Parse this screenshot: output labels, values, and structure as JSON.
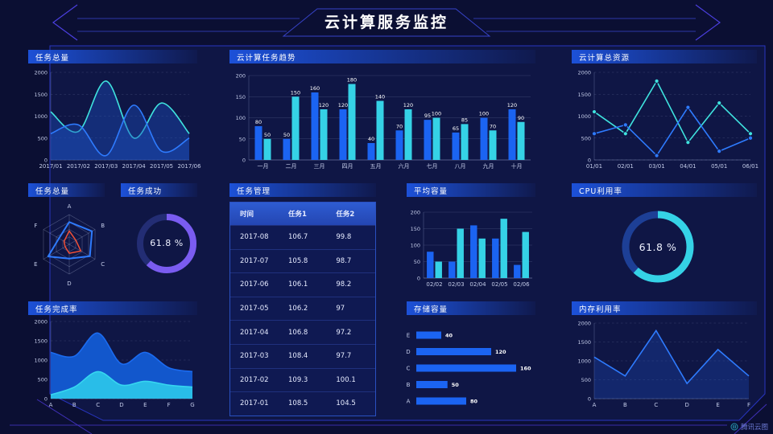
{
  "page": {
    "title": "云计算服务监控",
    "footer_logo": "腾讯云图",
    "colors": {
      "background": "#0b0f33",
      "frame": "#2c3ad0",
      "accent_blue": "#1b64f2",
      "accent_cyan": "#35d2e6",
      "accent_purple": "#7a5cf0",
      "accent_red": "#f05038"
    }
  },
  "chart_data": [
    {
      "id": "task-total-area",
      "type": "area",
      "title": "任务总量",
      "x": [
        "2017/01",
        "2017/02",
        "2017/03",
        "2017/04",
        "2017/05",
        "2017/06"
      ],
      "ylim": [
        0,
        2000
      ],
      "yticks": [
        0,
        500,
        1000,
        1500,
        2000
      ],
      "grid": "dash",
      "smooth": true,
      "markers": false,
      "series": [
        {
          "name": "series-cyan",
          "color": "#3fe3de",
          "fill": "rgba(28,78,190,0.42)",
          "values": [
            1100,
            650,
            1800,
            500,
            1300,
            600
          ]
        },
        {
          "name": "series-blue",
          "color": "#2e7bfe",
          "fill": "rgba(28,78,190,0.42)",
          "values": [
            600,
            800,
            100,
            1250,
            200,
            500
          ]
        }
      ]
    },
    {
      "id": "cloud-task-trend",
      "type": "bar",
      "title": "云计算任务趋势",
      "categories": [
        "一月",
        "二月",
        "三月",
        "四月",
        "五月",
        "六月",
        "七月",
        "八月",
        "九月",
        "十月"
      ],
      "ylim": [
        0,
        200
      ],
      "yticks": [
        0,
        50,
        100,
        150,
        200
      ],
      "show_labels": true,
      "series": [
        {
          "name": "series-blue",
          "color": "#1b64f2",
          "values": [
            80,
            50,
            160,
            120,
            40,
            70,
            95,
            65,
            100,
            120
          ]
        },
        {
          "name": "series-cyan",
          "color": "#35d2e6",
          "values": [
            50,
            150,
            120,
            180,
            140,
            120,
            100,
            85,
            70,
            90
          ]
        }
      ]
    },
    {
      "id": "cloud-total-resource",
      "type": "line",
      "title": "云计算总资源",
      "x": [
        "01/01",
        "02/01",
        "03/01",
        "04/01",
        "05/01",
        "06/01"
      ],
      "ylim": [
        0,
        2000
      ],
      "yticks": [
        0,
        500,
        1000,
        1500,
        2000
      ],
      "grid": "dash",
      "smooth": false,
      "markers": true,
      "series": [
        {
          "name": "series-cyan",
          "color": "#3fe3de",
          "values": [
            1100,
            600,
            1800,
            400,
            1300,
            600
          ]
        },
        {
          "name": "series-blue",
          "color": "#2e7bfe",
          "values": [
            600,
            800,
            100,
            1200,
            200,
            500
          ]
        }
      ]
    },
    {
      "id": "task-total-radar",
      "type": "radar",
      "title": "任务总量",
      "axes": [
        "A",
        "B",
        "C",
        "D",
        "E",
        "F"
      ],
      "max": 100,
      "series": [
        {
          "name": "series-blue",
          "color": "#2e7bfe",
          "values": [
            75,
            88,
            80,
            48,
            82,
            40
          ]
        },
        {
          "name": "series-red",
          "color": "#f05038",
          "values": [
            45,
            26,
            45,
            30,
            16,
            20
          ]
        }
      ]
    },
    {
      "id": "task-success-gauge",
      "type": "donut",
      "title": "任务成功",
      "value": 61.8,
      "label": "61.8 %",
      "color": "#7a5cf0",
      "track": "#232d74"
    },
    {
      "id": "task-table",
      "type": "table",
      "title": "任务管理",
      "headers": [
        "时间",
        "任务1",
        "任务2"
      ],
      "rows": [
        [
          "2017-08",
          "106.7",
          "99.8"
        ],
        [
          "2017-07",
          "105.8",
          "98.7"
        ],
        [
          "2017-06",
          "106.1",
          "98.2"
        ],
        [
          "2017-05",
          "106.2",
          "97"
        ],
        [
          "2017-04",
          "106.8",
          "97.2"
        ],
        [
          "2017-03",
          "108.4",
          "97.7"
        ],
        [
          "2017-02",
          "109.3",
          "100.1"
        ],
        [
          "2017-01",
          "108.5",
          "104.5"
        ]
      ]
    },
    {
      "id": "avg-capacity",
      "type": "bar",
      "title": "平均容量",
      "categories": [
        "02/02",
        "02/03",
        "02/04",
        "02/05",
        "02/06"
      ],
      "ylim": [
        0,
        200
      ],
      "yticks": [
        0,
        50,
        100,
        150,
        200
      ],
      "show_labels": false,
      "series": [
        {
          "name": "series-blue",
          "color": "#1b64f2",
          "values": [
            80,
            50,
            160,
            120,
            40
          ]
        },
        {
          "name": "series-cyan",
          "color": "#35d2e6",
          "values": [
            50,
            150,
            120,
            180,
            140
          ]
        }
      ]
    },
    {
      "id": "cpu-usage-gauge",
      "type": "donut",
      "title": "CPU利用率",
      "value": 61.8,
      "label": "61.8 %",
      "color": "#35d2e6",
      "track": "#1d3f96"
    },
    {
      "id": "task-completion",
      "type": "area",
      "title": "任务完成率",
      "x": [
        "A",
        "B",
        "C",
        "D",
        "E",
        "F",
        "G"
      ],
      "ylim": [
        0,
        2000
      ],
      "yticks": [
        0,
        500,
        1000,
        1500,
        2000
      ],
      "grid": "dash",
      "smooth": true,
      "markers": false,
      "series": [
        {
          "name": "series-blue",
          "color": "#1b6bf0",
          "fill": "#1257cc",
          "values": [
            1200,
            1100,
            1700,
            900,
            1200,
            800,
            700
          ]
        },
        {
          "name": "series-cyan",
          "color": "#36d6f0",
          "fill": "#29bde8",
          "values": [
            100,
            300,
            700,
            350,
            450,
            350,
            300
          ]
        }
      ]
    },
    {
      "id": "storage-capacity",
      "type": "hbar",
      "title": "存储容量",
      "categories": [
        "E",
        "D",
        "C",
        "B",
        "A"
      ],
      "values": [
        40,
        120,
        160,
        50,
        80
      ],
      "max": 160,
      "color": "#1b64f2"
    },
    {
      "id": "memory-usage",
      "type": "line",
      "title": "内存利用率",
      "x": [
        "A",
        "B",
        "C",
        "D",
        "E",
        "F"
      ],
      "ylim": [
        0,
        2000
      ],
      "yticks": [
        0,
        500,
        1000,
        1500,
        2000
      ],
      "grid": "dash",
      "smooth": false,
      "markers": false,
      "series": [
        {
          "name": "series-blue",
          "color": "#2e7bfe",
          "fill": "rgba(28,72,180,0.35)",
          "values": [
            1100,
            600,
            1800,
            400,
            1300,
            600
          ]
        }
      ]
    }
  ]
}
